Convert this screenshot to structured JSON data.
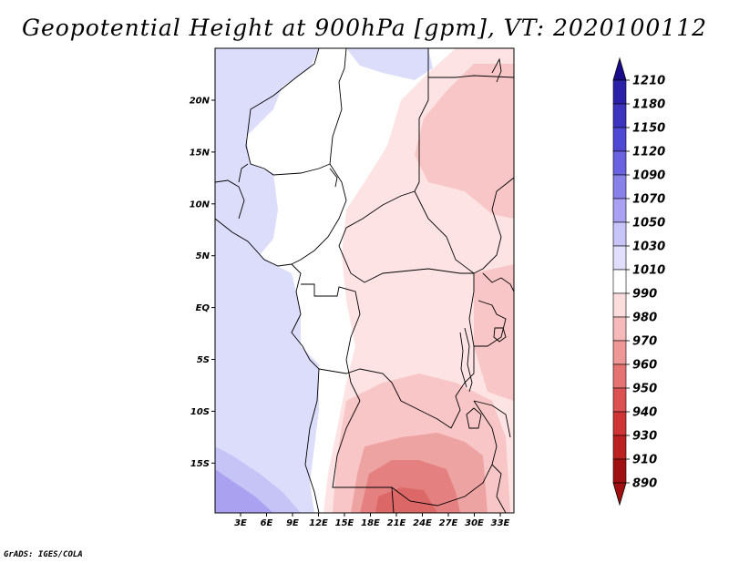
{
  "title": "Geopotential Height at 900hPa [gpm], VT: 2020100112",
  "credit": "GrADS: IGES/COLA",
  "map": {
    "lon_labels": [
      "3E",
      "6E",
      "9E",
      "12E",
      "15E",
      "18E",
      "21E",
      "24E",
      "27E",
      "30E",
      "33E"
    ],
    "lat_labels": [
      "20N",
      "15N",
      "10N",
      "5N",
      "EQ",
      "5S",
      "10S",
      "15S"
    ]
  },
  "colorbar": {
    "levels": [
      "1210",
      "1180",
      "1150",
      "1120",
      "1090",
      "1070",
      "1050",
      "1030",
      "1010",
      "990",
      "980",
      "970",
      "960",
      "950",
      "940",
      "930",
      "910",
      "890"
    ],
    "colors": [
      "#1a0a8c",
      "#2b20a8",
      "#3d34c0",
      "#4f48d4",
      "#6a62e0",
      "#8a80ea",
      "#a9a2f2",
      "#c8c4f8",
      "#e0dffb",
      "#ffffff",
      "#fbdddd",
      "#f6b9b9",
      "#ef9696",
      "#e67373",
      "#dc5252",
      "#cf3535",
      "#bd2020",
      "#a01010"
    ]
  }
}
